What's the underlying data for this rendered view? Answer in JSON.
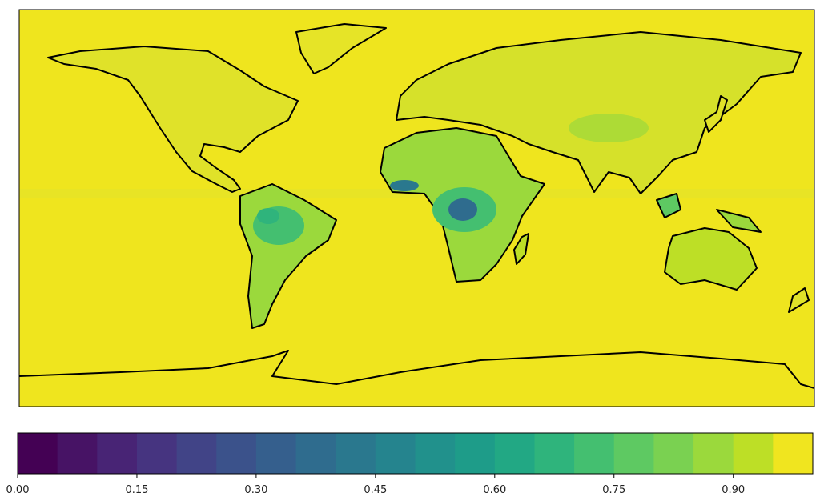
{
  "colorbar": {
    "lim": [
      0,
      1
    ],
    "bounds": [
      0,
      0.05,
      0.1,
      0.15,
      0.2,
      0.25,
      0.3,
      0.35,
      0.4,
      0.45,
      0.5,
      0.55,
      0.6,
      0.65,
      0.7,
      0.75,
      0.8,
      0.85,
      0.9,
      0.95,
      1
    ],
    "colors": [
      "#440154",
      "#471365",
      "#482475",
      "#463480",
      "#414487",
      "#3b528b",
      "#355f8d",
      "#2f6c8e",
      "#2a788e",
      "#25848e",
      "#21918c",
      "#1e9c89",
      "#22a884",
      "#2fb47c",
      "#44bf70",
      "#5ec962",
      "#7ad151",
      "#9bd93c",
      "#bddf26",
      "#f0e51f"
    ],
    "ticks": [
      {
        "value": 0,
        "label": "0.00"
      },
      {
        "value": 0.15,
        "label": "0.15"
      },
      {
        "value": 0.3,
        "label": "0.30"
      },
      {
        "value": 0.45,
        "label": "0.45"
      },
      {
        "value": 0.6,
        "label": "0.60"
      },
      {
        "value": 0.75,
        "label": "0.75"
      },
      {
        "value": 0.9,
        "label": "0.90"
      }
    ]
  }
}
